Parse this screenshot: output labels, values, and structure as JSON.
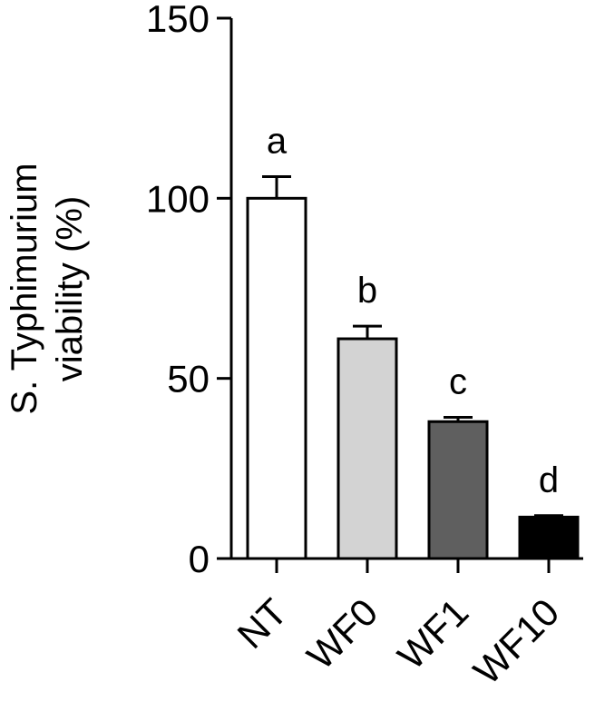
{
  "chart_data": {
    "type": "bar",
    "ylabel_lines": [
      "S. Typhimurium",
      "viability (%)"
    ],
    "ylim": [
      0,
      150
    ],
    "yticks": [
      0,
      50,
      100,
      150
    ],
    "categories": [
      "NT",
      "WF0",
      "WF1",
      "WF10"
    ],
    "values": [
      100,
      61,
      38,
      11.5
    ],
    "errors": [
      6,
      3.5,
      1.2,
      0.4
    ],
    "significance": [
      "a",
      "b",
      "c",
      "d"
    ],
    "bar_colors": [
      "#ffffff",
      "#d3d3d3",
      "#5f5f5f",
      "#000000"
    ],
    "grid": false
  }
}
